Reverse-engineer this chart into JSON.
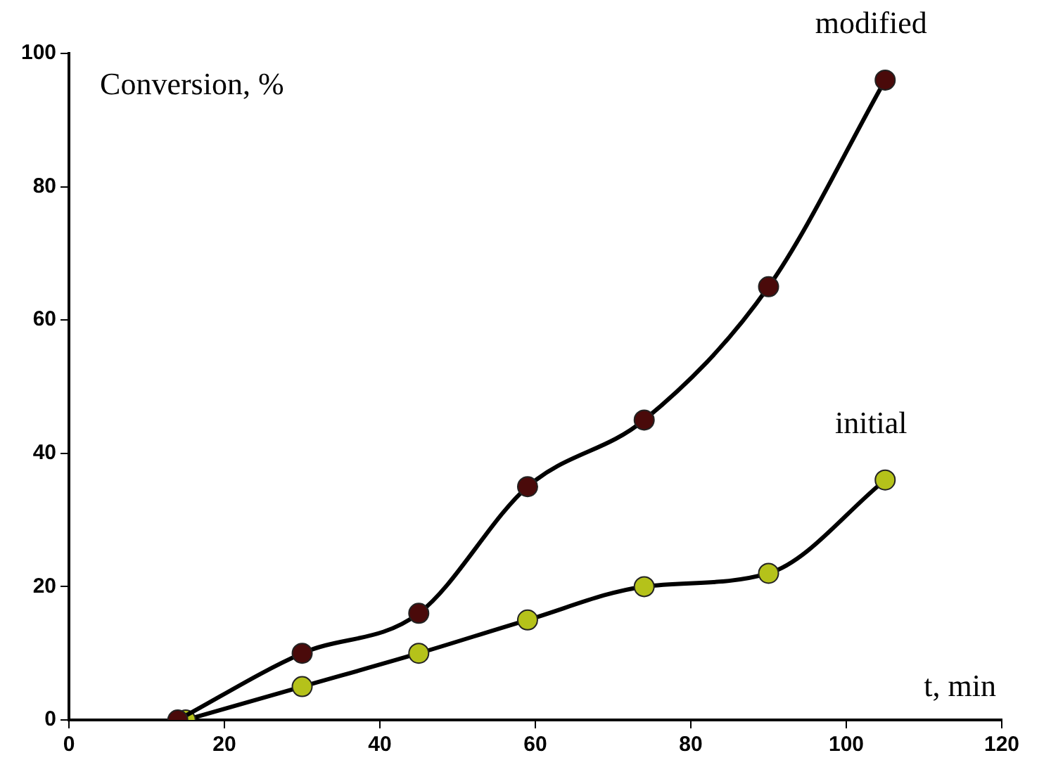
{
  "chart_data": {
    "type": "line",
    "xlabel": "t, min",
    "ylabel": "Conversion, %",
    "xlim": [
      0,
      120
    ],
    "xticks": [
      0,
      20,
      40,
      60,
      80,
      100,
      120
    ],
    "ylim": [
      0,
      100
    ],
    "yticks": [
      0,
      20,
      40,
      60,
      80,
      100
    ],
    "grid": false,
    "legend": false,
    "marker": "circle",
    "line_style": "solid",
    "series": [
      {
        "name": "modified",
        "color": "#4a0a0a",
        "x": [
          14,
          30,
          45,
          59,
          74,
          90,
          105
        ],
        "values": [
          0,
          10,
          16,
          35,
          45,
          65,
          96
        ]
      },
      {
        "name": "initial",
        "color": "#b5c21a",
        "x": [
          15,
          30,
          45,
          59,
          74,
          90,
          105
        ],
        "values": [
          0,
          5,
          10,
          15,
          20,
          22,
          36
        ]
      }
    ]
  }
}
